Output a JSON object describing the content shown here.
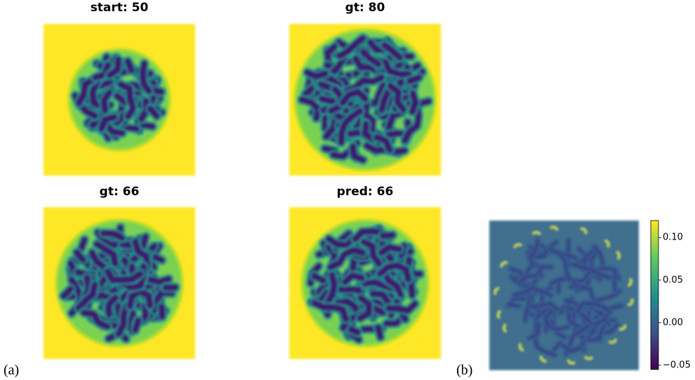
{
  "panels": [
    {
      "title": "start: 50"
    },
    {
      "title": "gt: 80"
    },
    {
      "title": "gt: 66"
    },
    {
      "title": "pred: 66"
    }
  ],
  "labels": {
    "a": "(a)",
    "b": "(b)"
  },
  "colorbar": {
    "lim": [
      -0.055,
      0.12
    ],
    "ticks": [
      {
        "value": 0.1,
        "label": "0.10"
      },
      {
        "value": 0.05,
        "label": "0.05"
      },
      {
        "value": 0,
        "label": "0.00"
      },
      {
        "value": -0.05,
        "label": "−0.05"
      }
    ]
  }
}
